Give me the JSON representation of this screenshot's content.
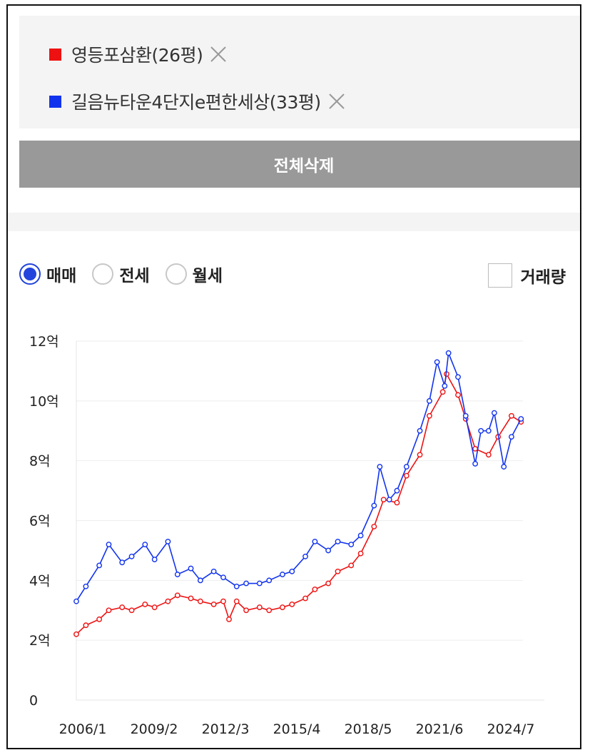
{
  "compare_list": {
    "items": [
      {
        "label": "영등포삼환(26평)",
        "color": "#ee1111"
      },
      {
        "label": "길음뉴타운4단지e편한세상(33평)",
        "color": "#1133ee"
      }
    ],
    "remove_icon": "close-icon",
    "delete_all_label": "전체삭제"
  },
  "trade_type": {
    "options": [
      "매매",
      "전세",
      "월세"
    ],
    "selected": "매매",
    "accent_color": "#2244dd"
  },
  "volume_toggle": {
    "label": "거래량",
    "checked": false
  },
  "chart_data": {
    "type": "line",
    "x_tick_labels": [
      "2006/1",
      "2009/2",
      "2012/3",
      "2015/4",
      "2018/5",
      "2021/6",
      "2024/7"
    ],
    "y_tick_labels": [
      "0",
      "2억",
      "4억",
      "6억",
      "8억",
      "10억",
      "12억"
    ],
    "y_unit": "억",
    "ylim": [
      0,
      12
    ],
    "xlim": [
      "2006/1",
      "2025/7"
    ],
    "grid": true,
    "markers": "hollow-circle",
    "series": [
      {
        "name": "영등포삼환(26평)",
        "color": "#ee1111",
        "points": [
          [
            "2006/1",
            2.2
          ],
          [
            "2006/6",
            2.5
          ],
          [
            "2007/1",
            2.7
          ],
          [
            "2007/6",
            3.0
          ],
          [
            "2008/1",
            3.1
          ],
          [
            "2008/6",
            3.0
          ],
          [
            "2009/1",
            3.2
          ],
          [
            "2009/6",
            3.1
          ],
          [
            "2010/1",
            3.3
          ],
          [
            "2010/6",
            3.5
          ],
          [
            "2011/1",
            3.4
          ],
          [
            "2011/6",
            3.3
          ],
          [
            "2012/1",
            3.2
          ],
          [
            "2012/6",
            3.3
          ],
          [
            "2012/9",
            2.7
          ],
          [
            "2013/1",
            3.3
          ],
          [
            "2013/6",
            3.0
          ],
          [
            "2014/1",
            3.1
          ],
          [
            "2014/6",
            3.0
          ],
          [
            "2015/1",
            3.1
          ],
          [
            "2015/6",
            3.2
          ],
          [
            "2016/1",
            3.4
          ],
          [
            "2016/6",
            3.7
          ],
          [
            "2017/1",
            3.9
          ],
          [
            "2017/6",
            4.3
          ],
          [
            "2018/1",
            4.5
          ],
          [
            "2018/6",
            4.9
          ],
          [
            "2019/1",
            5.8
          ],
          [
            "2019/6",
            6.7
          ],
          [
            "2020/1",
            6.6
          ],
          [
            "2020/6",
            7.5
          ],
          [
            "2021/1",
            8.2
          ],
          [
            "2021/6",
            9.5
          ],
          [
            "2022/1",
            10.3
          ],
          [
            "2022/3",
            10.9
          ],
          [
            "2022/9",
            10.2
          ],
          [
            "2023/1",
            9.4
          ],
          [
            "2023/6",
            8.4
          ],
          [
            "2024/1",
            8.2
          ],
          [
            "2024/6",
            8.8
          ],
          [
            "2025/1",
            9.5
          ],
          [
            "2025/6",
            9.3
          ]
        ]
      },
      {
        "name": "길음뉴타운4단지e편한세상(33평)",
        "color": "#1133ee",
        "points": [
          [
            "2006/1",
            3.3
          ],
          [
            "2006/6",
            3.8
          ],
          [
            "2007/1",
            4.5
          ],
          [
            "2007/6",
            5.2
          ],
          [
            "2008/1",
            4.6
          ],
          [
            "2008/6",
            4.8
          ],
          [
            "2009/1",
            5.2
          ],
          [
            "2009/6",
            4.7
          ],
          [
            "2010/1",
            5.3
          ],
          [
            "2010/6",
            4.2
          ],
          [
            "2011/1",
            4.4
          ],
          [
            "2011/6",
            4.0
          ],
          [
            "2012/1",
            4.3
          ],
          [
            "2012/6",
            4.1
          ],
          [
            "2013/1",
            3.8
          ],
          [
            "2013/6",
            3.9
          ],
          [
            "2014/1",
            3.9
          ],
          [
            "2014/6",
            4.0
          ],
          [
            "2015/1",
            4.2
          ],
          [
            "2015/6",
            4.3
          ],
          [
            "2016/1",
            4.8
          ],
          [
            "2016/6",
            5.3
          ],
          [
            "2017/1",
            5.0
          ],
          [
            "2017/6",
            5.3
          ],
          [
            "2018/1",
            5.2
          ],
          [
            "2018/6",
            5.5
          ],
          [
            "2019/1",
            6.5
          ],
          [
            "2019/4",
            7.8
          ],
          [
            "2019/9",
            6.7
          ],
          [
            "2020/1",
            7.0
          ],
          [
            "2020/6",
            7.8
          ],
          [
            "2021/1",
            9.0
          ],
          [
            "2021/6",
            10.0
          ],
          [
            "2021/10",
            11.3
          ],
          [
            "2022/2",
            10.5
          ],
          [
            "2022/4",
            11.6
          ],
          [
            "2022/9",
            10.8
          ],
          [
            "2023/1",
            9.5
          ],
          [
            "2023/6",
            7.9
          ],
          [
            "2023/9",
            9.0
          ],
          [
            "2024/1",
            9.0
          ],
          [
            "2024/4",
            9.6
          ],
          [
            "2024/9",
            7.8
          ],
          [
            "2025/1",
            8.8
          ],
          [
            "2025/6",
            9.4
          ]
        ]
      }
    ]
  }
}
